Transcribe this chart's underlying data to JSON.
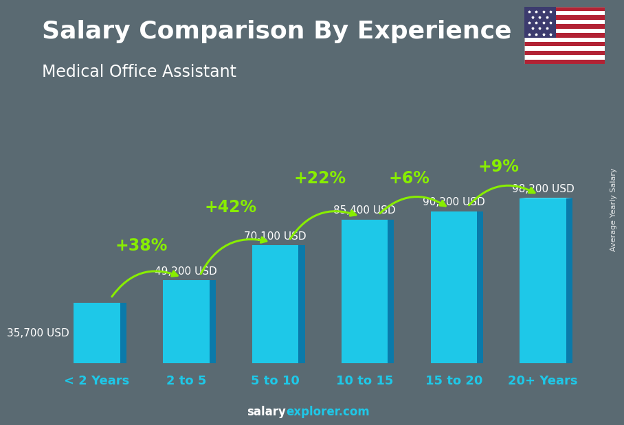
{
  "title": "Salary Comparison By Experience",
  "subtitle": "Medical Office Assistant",
  "categories": [
    "< 2 Years",
    "2 to 5",
    "5 to 10",
    "10 to 15",
    "15 to 20",
    "20+ Years"
  ],
  "values": [
    35700,
    49200,
    70100,
    85400,
    90200,
    98200
  ],
  "labels": [
    "35,700 USD",
    "49,200 USD",
    "70,100 USD",
    "85,400 USD",
    "90,200 USD",
    "98,200 USD"
  ],
  "pct_labels": [
    "+38%",
    "+42%",
    "+22%",
    "+6%",
    "+9%"
  ],
  "bar_front": "#1ec8e8",
  "bar_side": "#0a7aaa",
  "bar_top": "#5de2f5",
  "bg_color": "#5a6a72",
  "text_color_white": "#ffffff",
  "text_color_cyan": "#1ec8e8",
  "green_color": "#88ee00",
  "ylabel": "Average Yearly Salary",
  "footer_white": "salary",
  "footer_cyan": "explorer.com",
  "title_fontsize": 26,
  "subtitle_fontsize": 17,
  "label_fontsize": 11,
  "pct_fontsize": 17,
  "cat_fontsize": 13,
  "ylabel_fontsize": 8
}
